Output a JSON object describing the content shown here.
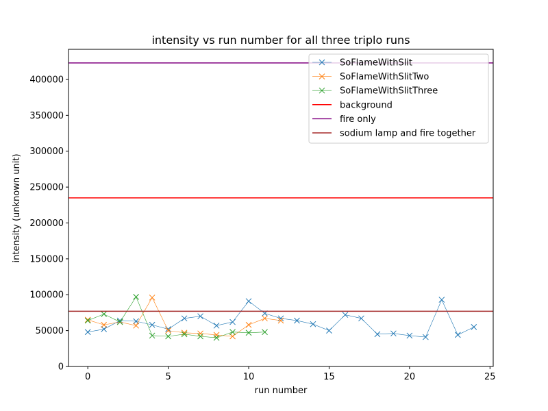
{
  "chart_data": {
    "type": "line",
    "title": "intensity vs run number for all three triplo runs",
    "xlabel": "run number",
    "ylabel": "intensity (unknown unit)",
    "xlim": [
      -1.2,
      25.2
    ],
    "ylim": [
      0,
      442000
    ],
    "xticks": [
      0,
      5,
      10,
      15,
      20,
      25
    ],
    "yticks": [
      0,
      50000,
      100000,
      150000,
      200000,
      250000,
      300000,
      350000,
      400000
    ],
    "grid": false,
    "legend_position": "top-right",
    "series": [
      {
        "name": "SoFlameWithSlit",
        "color": "#1f77b4",
        "marker": "x",
        "x": [
          0,
          1,
          2,
          3,
          4,
          5,
          6,
          7,
          8,
          9,
          10,
          11,
          12,
          13,
          14,
          15,
          16,
          17,
          18,
          19,
          20,
          21,
          22,
          23,
          24
        ],
        "values": [
          48000,
          52000,
          64000,
          63000,
          58000,
          52000,
          67000,
          70000,
          57000,
          62000,
          91000,
          74000,
          67000,
          64000,
          59000,
          50000,
          72000,
          67000,
          45000,
          46000,
          43000,
          41000,
          93000,
          44000,
          55000
        ]
      },
      {
        "name": "SoFlameWithSlitTwo",
        "color": "#ff7f0e",
        "marker": "x",
        "x": [
          0,
          1,
          2,
          3,
          4,
          5,
          6,
          7,
          8,
          9,
          10,
          11,
          12
        ],
        "values": [
          65000,
          58000,
          62000,
          57000,
          96000,
          50000,
          47000,
          46000,
          44000,
          42000,
          58000,
          67000,
          64000
        ]
      },
      {
        "name": "SoFlameWithSlitThree",
        "color": "#2ca02c",
        "marker": "x",
        "x": [
          0,
          1,
          2,
          3,
          4,
          5,
          6,
          7,
          8,
          9,
          10,
          11
        ],
        "values": [
          64000,
          73000,
          62000,
          97000,
          43000,
          42000,
          45000,
          42000,
          40000,
          48000,
          47000,
          48000
        ]
      }
    ],
    "hlines": [
      {
        "name": "background",
        "color": "#ff0000",
        "value": 235000
      },
      {
        "name": "fire only",
        "color": "#800080",
        "value": 423000
      },
      {
        "name": "sodium lamp and fire together",
        "color": "#a52a2a",
        "value": 77000
      }
    ]
  }
}
